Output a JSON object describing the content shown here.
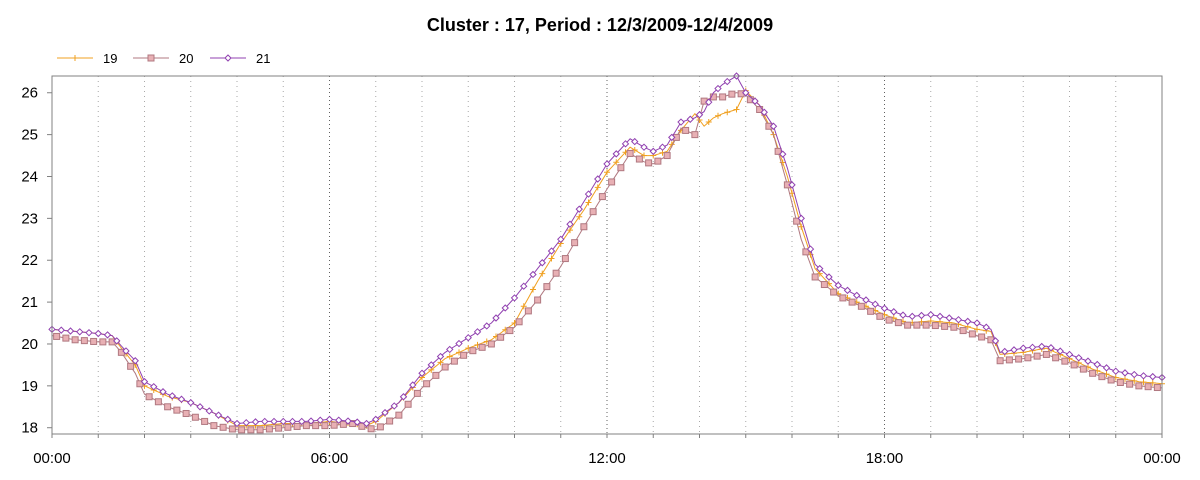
{
  "chart_data": {
    "type": "line",
    "title": "Cluster : 17, Period : 12/3/2009-12/4/2009",
    "xlabel": "",
    "ylabel": "",
    "x_tick_labels": [
      "00:00",
      "06:00",
      "12:00",
      "18:00",
      "00:00"
    ],
    "x_tick_hours": [
      0,
      6,
      12,
      18,
      24
    ],
    "xlim_hours": [
      0,
      24
    ],
    "y_ticks": [
      18,
      19,
      20,
      21,
      22,
      23,
      24,
      25,
      26
    ],
    "ylim": [
      17.85,
      26.4
    ],
    "grid": {
      "x_major": true,
      "x_minor": true,
      "y": false,
      "style": "dotted"
    },
    "legend": {
      "placement": "top-left"
    },
    "x_hours": [
      0,
      0.5,
      1,
      1.3,
      1.5,
      1.8,
      2,
      2.5,
      3,
      3.5,
      4,
      4.5,
      5,
      5.5,
      6,
      6.5,
      6.8,
      7,
      7.5,
      8,
      8.5,
      9,
      9.5,
      10,
      10.5,
      11,
      11.5,
      12,
      12.5,
      12.8,
      13,
      13.3,
      13.6,
      13.9,
      14.1,
      14.3,
      14.5,
      14.8,
      15,
      15.3,
      15.6,
      15.9,
      16.2,
      16.5,
      17,
      17.5,
      18,
      18.5,
      19,
      19.5,
      20,
      20.3,
      20.5,
      21,
      21.5,
      22,
      22.5,
      23,
      23.5,
      24
    ],
    "series": [
      {
        "name": "19",
        "color": "#f0a020",
        "marker": "plus",
        "values": [
          20.35,
          20.3,
          20.25,
          20.2,
          19.9,
          19.5,
          19.0,
          18.75,
          18.6,
          18.35,
          18.05,
          18.05,
          18.1,
          18.1,
          18.15,
          18.1,
          18.05,
          18.15,
          18.6,
          19.2,
          19.65,
          19.9,
          20.1,
          20.5,
          21.5,
          22.4,
          23.2,
          24.1,
          24.7,
          24.5,
          24.5,
          24.6,
          25.1,
          25.5,
          25.2,
          25.4,
          25.5,
          25.6,
          26.05,
          25.7,
          25.0,
          24.0,
          22.8,
          21.8,
          21.2,
          20.95,
          20.7,
          20.5,
          20.55,
          20.5,
          20.35,
          20.3,
          19.75,
          19.8,
          19.9,
          19.65,
          19.4,
          19.2,
          19.1,
          19.05
        ]
      },
      {
        "name": "20",
        "color": "#b07880",
        "marker": "square",
        "values": [
          20.2,
          20.1,
          20.05,
          20.05,
          19.8,
          19.3,
          18.8,
          18.5,
          18.3,
          18.05,
          17.95,
          17.95,
          18.0,
          18.05,
          18.05,
          18.1,
          18.0,
          17.95,
          18.3,
          18.95,
          19.45,
          19.8,
          20.0,
          20.4,
          21.05,
          21.85,
          22.8,
          23.7,
          24.55,
          24.35,
          24.3,
          24.5,
          25.15,
          25.0,
          25.8,
          25.9,
          25.9,
          26.0,
          25.95,
          25.6,
          25.0,
          23.8,
          22.5,
          21.6,
          21.15,
          20.9,
          20.6,
          20.45,
          20.45,
          20.4,
          20.2,
          20.1,
          19.6,
          19.65,
          19.75,
          19.55,
          19.3,
          19.1,
          19.0,
          18.95
        ]
      },
      {
        "name": "21",
        "color": "#9040b0",
        "marker": "diamond",
        "values": [
          20.35,
          20.3,
          20.25,
          20.2,
          19.95,
          19.6,
          19.1,
          18.8,
          18.6,
          18.35,
          18.1,
          18.15,
          18.15,
          18.15,
          18.2,
          18.15,
          18.1,
          18.2,
          18.6,
          19.3,
          19.8,
          20.15,
          20.5,
          21.1,
          21.8,
          22.5,
          23.4,
          24.3,
          24.9,
          24.7,
          24.6,
          24.75,
          25.3,
          25.4,
          25.55,
          26.0,
          26.2,
          26.4,
          26.0,
          25.7,
          25.2,
          24.2,
          23.0,
          21.9,
          21.4,
          21.1,
          20.85,
          20.65,
          20.7,
          20.6,
          20.5,
          20.35,
          19.8,
          19.9,
          19.95,
          19.75,
          19.55,
          19.35,
          19.25,
          19.2
        ]
      }
    ]
  }
}
